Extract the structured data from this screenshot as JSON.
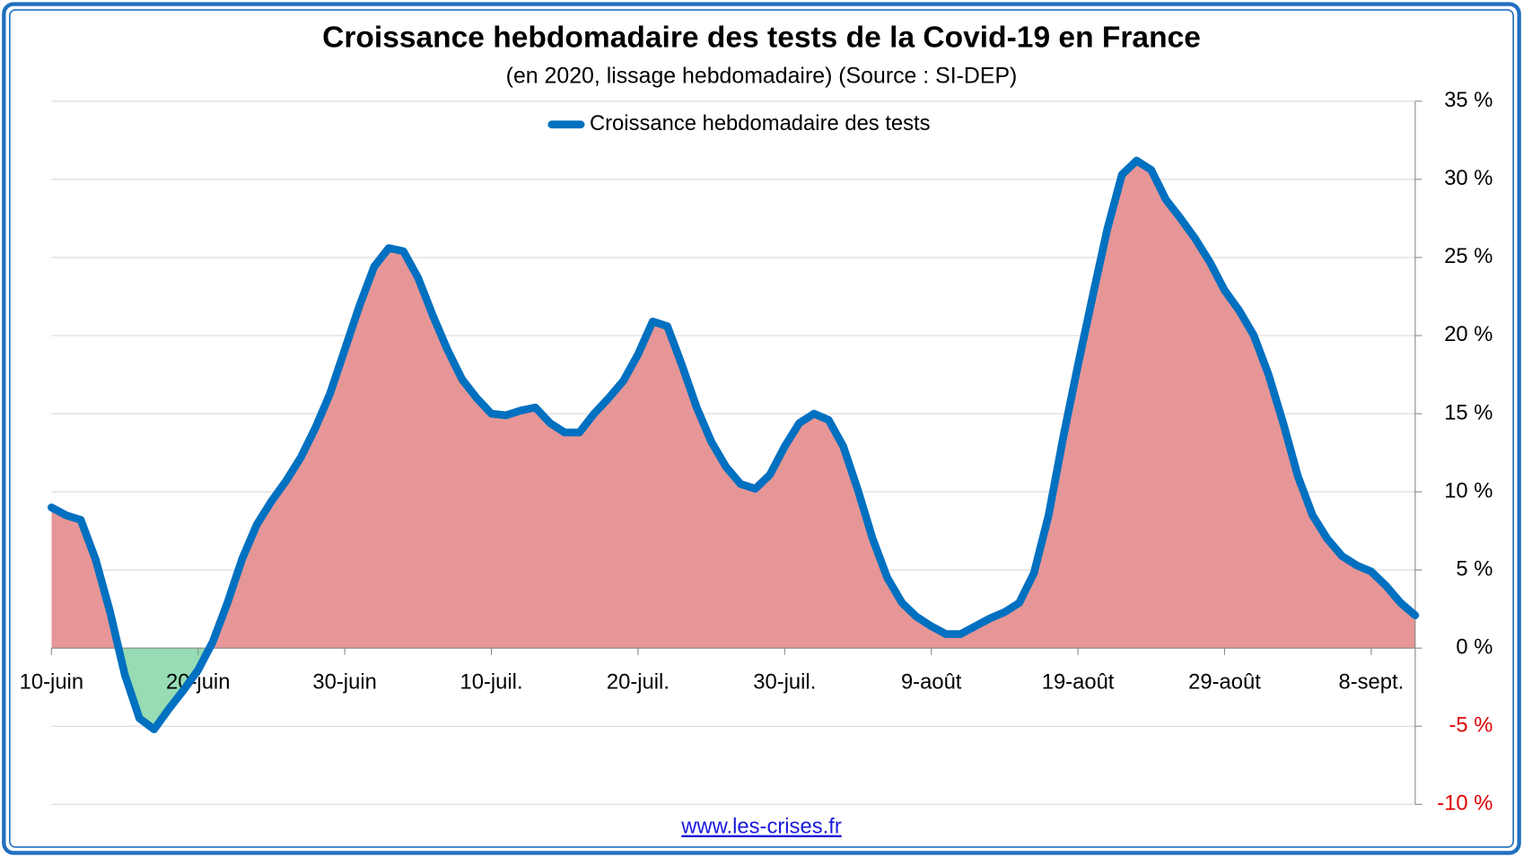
{
  "chart_data": {
    "type": "area-line",
    "title": "Croissance hebdomadaire des tests de la Covid-19 en France",
    "subtitle": "(en 2020, lissage hebdomadaire) (Source : SI-DEP)",
    "source": "www.les-crises.fr",
    "categories": [
      "10-juin",
      null,
      null,
      null,
      null,
      null,
      null,
      null,
      null,
      null,
      "20-juin",
      null,
      null,
      null,
      null,
      null,
      null,
      null,
      null,
      null,
      "30-juin",
      null,
      null,
      null,
      null,
      null,
      null,
      null,
      null,
      null,
      "10-juil.",
      null,
      null,
      null,
      null,
      null,
      null,
      null,
      null,
      null,
      "20-juil.",
      null,
      null,
      null,
      null,
      null,
      null,
      null,
      null,
      null,
      "30-juil.",
      null,
      null,
      null,
      null,
      null,
      null,
      null,
      null,
      null,
      "9-août",
      null,
      null,
      null,
      null,
      null,
      null,
      null,
      null,
      null,
      "19-août",
      null,
      null,
      null,
      null,
      null,
      null,
      null,
      null,
      null,
      "29-août",
      null,
      null,
      null,
      null,
      null,
      null,
      null,
      null,
      null,
      "8-sept.",
      null,
      null,
      null
    ],
    "series": [
      {
        "name": "Croissance hebdomadaire des tests",
        "color": "#0070c0",
        "values": [
          9.0,
          8.5,
          8.2,
          5.7,
          2.3,
          -1.7,
          -4.5,
          -5.2,
          -3.9,
          -2.7,
          -1.4,
          0.4,
          2.9,
          5.7,
          7.9,
          9.4,
          10.7,
          12.2,
          14.1,
          16.3,
          19.1,
          21.9,
          24.4,
          25.6,
          25.4,
          23.7,
          21.3,
          19.1,
          17.2,
          16.0,
          15.0,
          14.9,
          15.2,
          15.4,
          14.4,
          13.8,
          13.8,
          15.0,
          16.0,
          17.1,
          18.8,
          20.9,
          20.6,
          18.1,
          15.4,
          13.2,
          11.6,
          10.5,
          10.2,
          11.1,
          12.9,
          14.4,
          15.0,
          14.6,
          12.9,
          10.1,
          7.0,
          4.5,
          2.9,
          2.0,
          1.4,
          0.9,
          0.9,
          1.4,
          1.9,
          2.3,
          2.9,
          4.8,
          8.5,
          13.5,
          18.1,
          22.5,
          26.8,
          30.3,
          31.2,
          30.6,
          28.7,
          27.5,
          26.2,
          24.7,
          22.9,
          21.6,
          20.0,
          17.5,
          14.4,
          11.0,
          8.5,
          7.0,
          5.9,
          5.3,
          4.9,
          4.0,
          2.9,
          2.1
        ]
      }
    ],
    "fill_positive": "#e69696",
    "fill_negative": "#96dcb4",
    "negative_tick_color": "#e00000",
    "ylim": [
      -10,
      35
    ],
    "yticks": [
      {
        "value": -10,
        "label": "-10 %"
      },
      {
        "value": -5,
        "label": "-5 %"
      },
      {
        "value": 0,
        "label": "0 %"
      },
      {
        "value": 5,
        "label": "5 %"
      },
      {
        "value": 10,
        "label": "10 %"
      },
      {
        "value": 15,
        "label": "15 %"
      },
      {
        "value": 20,
        "label": "20 %"
      },
      {
        "value": 25,
        "label": "25 %"
      },
      {
        "value": 30,
        "label": "30 %"
      },
      {
        "value": 35,
        "label": "35 %"
      }
    ],
    "grid": true,
    "legend": "top"
  }
}
